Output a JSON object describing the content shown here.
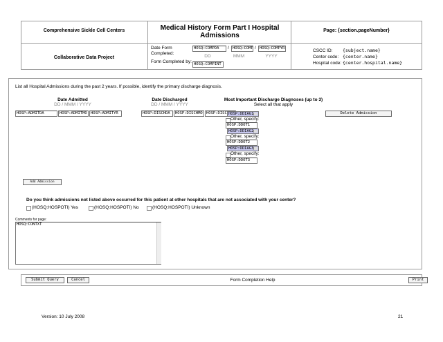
{
  "header": {
    "org": "Comprehensive Sickle Cell Centers",
    "title": "Medical History Form Part I Hospital Admissions",
    "page": "Page: {section.pageNumber}",
    "project": "Collaborative Data Project",
    "date_label": "Date Form Completed:",
    "date_fields": [
      "HOSQ:COMPDA",
      "HOSQ:COMPMO",
      "HOSQ:COMPYR"
    ],
    "date_separator": "/",
    "date_hints": [
      "DD",
      "MMM",
      "YYYY"
    ],
    "completed_by_label": "Form Completed by:",
    "completed_by_field": "HOSQ:COMPINT",
    "ids": [
      {
        "label": "CSCC ID:",
        "value": "{subject.name}"
      },
      {
        "label": "Center code:",
        "value": "{center.name}"
      },
      {
        "label": "Hospital code:",
        "value": "{center.hospital.name}"
      }
    ]
  },
  "section": {
    "instruction": "List all Hospital Admissions during the past 2 years. If possible, identify the primary discharge diagnosis.",
    "columns": [
      {
        "title": "Date Admitted",
        "hint": "DD / MMM / YYYY"
      },
      {
        "title": "Date Discharged",
        "hint": "DD / MMM / YYYY"
      },
      {
        "title": "Most Important Discharge Diagnoses (up to 3)",
        "hint": "Select all that apply"
      }
    ],
    "admit_fields": [
      "HOSP:ADMITDA",
      "HOSP:ADMITMO",
      "HOSP:ADMITYR"
    ],
    "discharge_fields": [
      "HOSP:DISCHDA",
      "HOSP:DISCHMO",
      "HOSP:DISCHYR"
    ],
    "diagnoses": [
      {
        "select": "HOSP:DDIAG1",
        "other": "Other, specify:",
        "field": "HOSP:DDOT1"
      },
      {
        "select": "HOSP:DDIAG2",
        "other": "Other, specify:",
        "field": "HOSP:DDOT2"
      },
      {
        "select": "HOSP:DDIAG3",
        "other": "Other, specify:",
        "field": "HOSP:DDOT3"
      }
    ],
    "delete_button": "Delete Admission",
    "add_button": "Add Admission",
    "question": "Do you think admissions not listed above occurred for this patient at other hospitals that are not associated with your center?",
    "options": [
      "(HOSQ:HOSPOTI) Yes",
      "(HOSQ:HOSPOTI) No",
      "(HOSQ:HOSPOTI) Unknown"
    ],
    "comments_label": "Comments for page:",
    "comments_field": "HOSQ:CONTXT"
  },
  "footer": {
    "buttons": [
      "Submit Query",
      "Cancel"
    ],
    "help": "Form Completion Help",
    "print": "Print"
  },
  "version": "Version: 10 July 2008",
  "page_number": "21"
}
